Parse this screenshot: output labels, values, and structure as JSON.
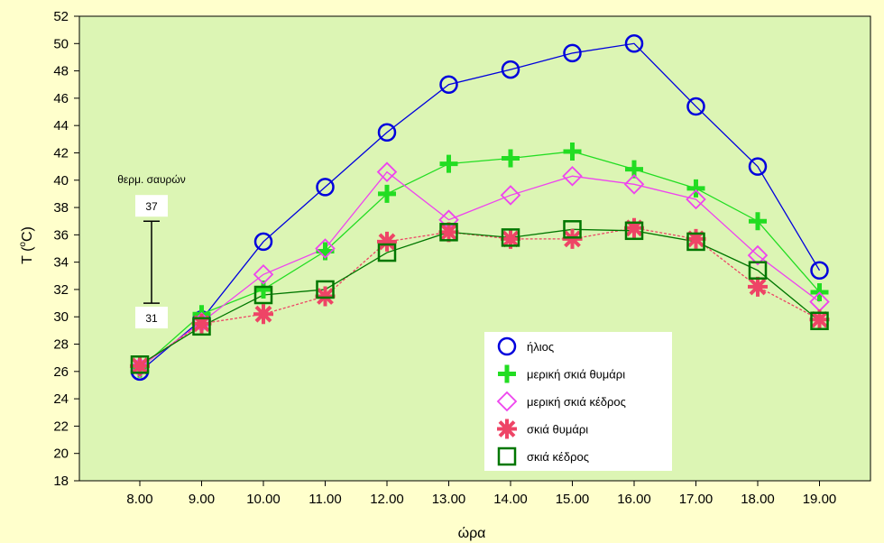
{
  "chart_data": {
    "type": "line",
    "title": "",
    "xlabel": "ώρα",
    "ylabel_base": "T (",
    "ylabel_sup": "o",
    "ylabel_unit": "C)",
    "categories": [
      "8.00",
      "9.00",
      "10.00",
      "11.00",
      "12.00",
      "13.00",
      "14.00",
      "15.00",
      "16.00",
      "17.00",
      "18.00",
      "19.00"
    ],
    "ylim": [
      18,
      52
    ],
    "yticks": [
      18,
      20,
      22,
      24,
      26,
      28,
      30,
      32,
      34,
      36,
      38,
      40,
      42,
      44,
      46,
      48,
      50,
      52
    ],
    "grid": false,
    "legend_position": "bottom-right",
    "plot_background": "#dcf5b4",
    "series": [
      {
        "name": "ήλιος",
        "marker": "circle",
        "color": "#0000dd",
        "dashed": false,
        "values": [
          26.0,
          29.8,
          35.5,
          39.5,
          43.5,
          47.0,
          48.1,
          49.3,
          50.0,
          45.4,
          41.0,
          33.4
        ]
      },
      {
        "name": "μερική σκιά θυμάρι",
        "marker": "plus",
        "color": "#22dd22",
        "dashed": false,
        "values": [
          26.2,
          30.2,
          32.0,
          34.8,
          39.0,
          41.2,
          41.6,
          42.1,
          40.8,
          39.4,
          37.0,
          31.8
        ]
      },
      {
        "name": "μερική σκιά κέδρος",
        "marker": "diamond",
        "color": "#ee44ee",
        "dashed": false,
        "values": [
          26.3,
          29.6,
          33.1,
          35.0,
          40.6,
          37.1,
          38.9,
          40.3,
          39.7,
          38.6,
          34.5,
          31.1
        ]
      },
      {
        "name": "σκιά θυμάρι",
        "marker": "asterisk",
        "color": "#ee4466",
        "dashed": true,
        "values": [
          26.4,
          29.5,
          30.2,
          31.5,
          35.5,
          36.2,
          35.7,
          35.7,
          36.5,
          35.7,
          32.2,
          29.8
        ]
      },
      {
        "name": "σκιά κέδρος",
        "marker": "square",
        "color": "#007700",
        "dashed": false,
        "values": [
          26.5,
          29.3,
          31.6,
          32.0,
          34.7,
          36.2,
          35.8,
          36.4,
          36.3,
          35.5,
          33.4,
          29.7
        ]
      }
    ],
    "annotation": {
      "label": "θερμ. σαυρών",
      "range": [
        31,
        37
      ],
      "upper_label": "37",
      "lower_label": "31"
    }
  }
}
